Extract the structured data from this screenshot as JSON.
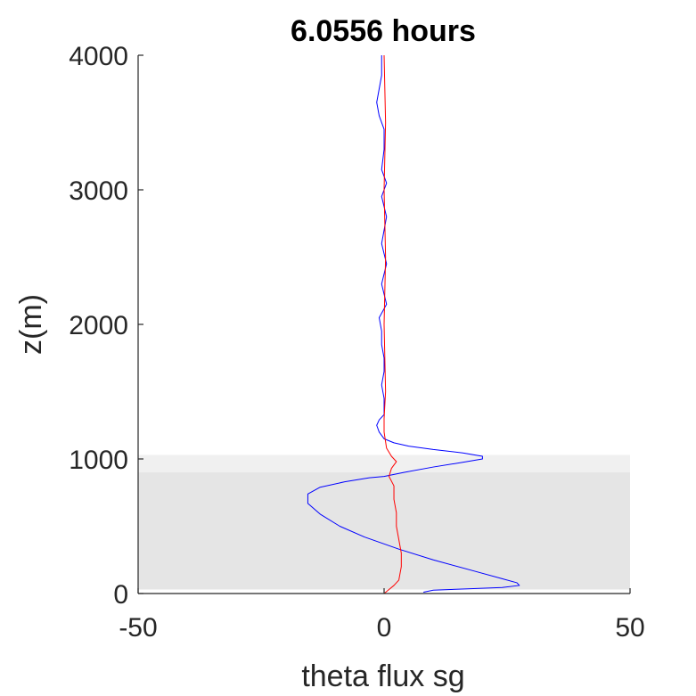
{
  "chart_data": {
    "type": "line",
    "title": "6.0556 hours",
    "xlabel": "theta flux sg",
    "ylabel": "z(m)",
    "xlim": [
      -50,
      50
    ],
    "ylim": [
      0,
      4000
    ],
    "xticks": [
      -50,
      0,
      50
    ],
    "xtick_labels": [
      "-50",
      "0",
      "50"
    ],
    "yticks": [
      0,
      1000,
      2000,
      3000,
      4000
    ],
    "ytick_labels": [
      "0",
      "1000",
      "2000",
      "3000",
      "4000"
    ],
    "grid": false,
    "colors": {
      "series_blue": "#0000ff",
      "series_red": "#ff0000",
      "band_outer": "#f0f0f0",
      "band_inner": "#e5e5e5",
      "axis": "#262626"
    },
    "shaded_bands": [
      {
        "y0": 30,
        "y1": 1030,
        "fill": "#f0f0f0"
      },
      {
        "y0": 30,
        "y1": 900,
        "fill": "#e5e5e5"
      }
    ],
    "series": [
      {
        "color": "#0000ff",
        "points": [
          [
            8,
            10
          ],
          [
            10,
            25
          ],
          [
            17,
            35
          ],
          [
            24,
            45
          ],
          [
            27.5,
            60
          ],
          [
            27,
            80
          ],
          [
            24,
            110
          ],
          [
            18,
            170
          ],
          [
            10,
            250
          ],
          [
            3,
            330
          ],
          [
            -4,
            420
          ],
          [
            -9,
            500
          ],
          [
            -13,
            590
          ],
          [
            -15.5,
            670
          ],
          [
            -15.5,
            740
          ],
          [
            -13,
            790
          ],
          [
            -8,
            830
          ],
          [
            -3,
            860
          ],
          [
            0,
            870
          ],
          [
            4,
            900
          ],
          [
            10,
            940
          ],
          [
            16,
            975
          ],
          [
            20,
            1000
          ],
          [
            20,
            1020
          ],
          [
            16,
            1045
          ],
          [
            10,
            1070
          ],
          [
            5,
            1095
          ],
          [
            2,
            1120
          ],
          [
            0,
            1150
          ],
          [
            -1,
            1200
          ],
          [
            -1.5,
            1250
          ],
          [
            -1,
            1290
          ],
          [
            0,
            1330
          ],
          [
            0,
            1450
          ],
          [
            -0.5,
            1550
          ],
          [
            0,
            1650
          ],
          [
            0,
            1750
          ],
          [
            -0.5,
            1850
          ],
          [
            -0.5,
            1950
          ],
          [
            -1,
            2050
          ],
          [
            0.5,
            2150
          ],
          [
            -0.5,
            2300
          ],
          [
            0.5,
            2450
          ],
          [
            -0.5,
            2600
          ],
          [
            0.5,
            2800
          ],
          [
            -0.5,
            2950
          ],
          [
            0.5,
            3050
          ],
          [
            -0.5,
            3150
          ],
          [
            0,
            3300
          ],
          [
            0,
            3450
          ],
          [
            -1,
            3550
          ],
          [
            -1.5,
            3650
          ],
          [
            -1,
            3750
          ],
          [
            -0.5,
            3850
          ],
          [
            -0.5,
            4000
          ]
        ]
      },
      {
        "color": "#ff0000",
        "points": [
          [
            0,
            0
          ],
          [
            1,
            30
          ],
          [
            2,
            60
          ],
          [
            3,
            100
          ],
          [
            3.5,
            200
          ],
          [
            3.5,
            300
          ],
          [
            3,
            400
          ],
          [
            2.5,
            500
          ],
          [
            2.5,
            600
          ],
          [
            2,
            700
          ],
          [
            2,
            800
          ],
          [
            1,
            870
          ],
          [
            1.5,
            930
          ],
          [
            2.5,
            980
          ],
          [
            1.5,
            1020
          ],
          [
            0.5,
            1080
          ],
          [
            0,
            1200
          ],
          [
            0,
            1300
          ],
          [
            0.3,
            1500
          ],
          [
            0,
            2000
          ],
          [
            0.3,
            2500
          ],
          [
            0,
            3000
          ],
          [
            0.3,
            3500
          ],
          [
            0,
            4000
          ]
        ]
      }
    ]
  }
}
